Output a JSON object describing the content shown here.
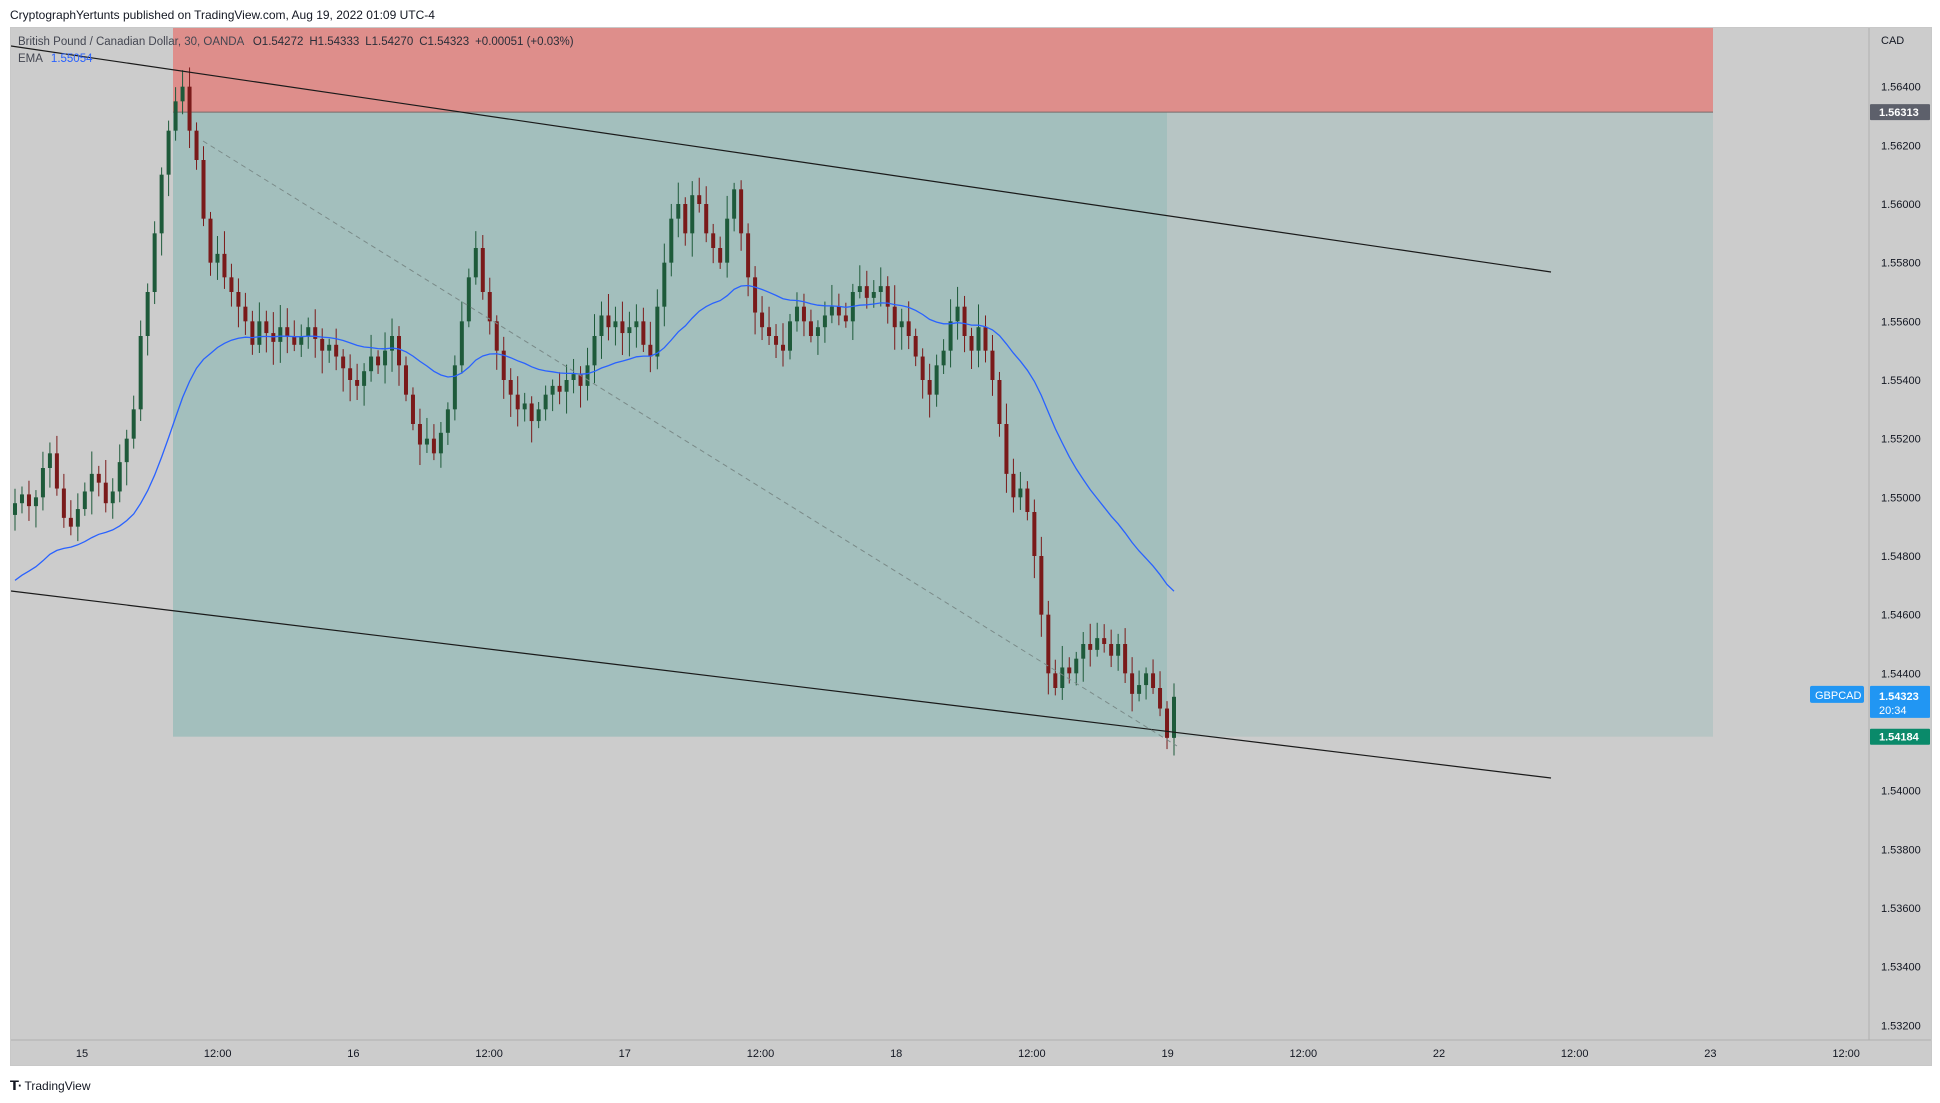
{
  "banner": "CryptographYertunts published on TradingView.com, Aug 19, 2022 01:09 UTC-4",
  "legend": {
    "symbol_desc": "British Pound / Canadian Dollar, 30, OANDA",
    "open": "O1.54272",
    "high": "H1.54333",
    "low": "L1.54270",
    "close": "C1.54323",
    "change": "+0.00051 (+0.03%)",
    "ema_label": "EMA",
    "ema_value": "1.55054"
  },
  "price_axis": {
    "currency": "CAD",
    "ticks": [
      "1.56400",
      "1.56200",
      "1.56000",
      "1.55800",
      "1.55600",
      "1.55400",
      "1.55200",
      "1.55000",
      "1.54800",
      "1.54600",
      "1.54400",
      "1.54000",
      "1.53800",
      "1.53600",
      "1.53400",
      "1.53200"
    ],
    "tick_values": [
      1.564,
      1.562,
      1.56,
      1.558,
      1.556,
      1.554,
      1.552,
      1.55,
      1.548,
      1.546,
      1.544,
      1.54,
      1.538,
      1.536,
      1.534,
      1.532
    ],
    "stop_label": "1.56313",
    "stop_value": 1.56313,
    "symbol_tag": "GBPCAD",
    "last_price": "1.54323",
    "last_value": 1.54323,
    "countdown": "20:34",
    "target_label": "1.54184",
    "target_value": 1.54184
  },
  "time_axis": {
    "labels": [
      "15",
      "12:00",
      "16",
      "12:00",
      "17",
      "12:00",
      "18",
      "12:00",
      "19",
      "12:00",
      "22",
      "12:00",
      "23",
      "12:00"
    ]
  },
  "colors": {
    "background": "#cccccc",
    "risk_zone": "#de8e8b",
    "reward_zone": "#a3bfbd",
    "reward_zone_ext": "#b7c5c4",
    "bull_candle": "#1e5a3a",
    "bear_candle": "#7a1a1a",
    "ema": "#2962ff",
    "channel": "#1a1a1a",
    "target_badge": "#0a8a6a",
    "last_badge": "#2196f3",
    "stop_badge": "#5d606b"
  },
  "chart_data": {
    "type": "candlestick",
    "title": "British Pound / Canadian Dollar, 30, OANDA",
    "ylim": [
      1.5315,
      1.566
    ],
    "indicator": "EMA",
    "ema_value": 1.55054,
    "position": {
      "type": "short",
      "stop": 1.56313,
      "target": 1.54184
    },
    "series": [
      {
        "name": "GBPCAD",
        "close": [
          1.5498,
          1.5501,
          1.5497,
          1.55,
          1.551,
          1.5515,
          1.5503,
          1.5493,
          1.549,
          1.5496,
          1.5502,
          1.5508,
          1.5505,
          1.5498,
          1.5502,
          1.5512,
          1.552,
          1.553,
          1.5555,
          1.557,
          1.559,
          1.561,
          1.5625,
          1.5635,
          1.564,
          1.5625,
          1.5615,
          1.5595,
          1.558,
          1.5583,
          1.5575,
          1.557,
          1.5565,
          1.556,
          1.5552,
          1.556,
          1.5556,
          1.5553,
          1.5558,
          1.5555,
          1.5552,
          1.5555,
          1.5558,
          1.5554,
          1.555,
          1.5552,
          1.5548,
          1.5544,
          1.554,
          1.5538,
          1.5543,
          1.5548,
          1.5545,
          1.555,
          1.5555,
          1.5545,
          1.5535,
          1.5525,
          1.5518,
          1.552,
          1.5515,
          1.5522,
          1.553,
          1.5545,
          1.556,
          1.5575,
          1.5585,
          1.557,
          1.556,
          1.555,
          1.554,
          1.5535,
          1.553,
          1.5532,
          1.5526,
          1.553,
          1.5535,
          1.5538,
          1.5536,
          1.554,
          1.5542,
          1.5538,
          1.5545,
          1.5555,
          1.5562,
          1.5558,
          1.556,
          1.5556,
          1.5558,
          1.556,
          1.5552,
          1.5548,
          1.5565,
          1.558,
          1.5595,
          1.56,
          1.559,
          1.5603,
          1.56,
          1.559,
          1.5585,
          1.558,
          1.5595,
          1.5605,
          1.559,
          1.5575,
          1.5563,
          1.5558,
          1.5555,
          1.5552,
          1.555,
          1.556,
          1.5565,
          1.556,
          1.5555,
          1.5558,
          1.5562,
          1.5565,
          1.5562,
          1.556,
          1.557,
          1.5572,
          1.5568,
          1.557,
          1.5572,
          1.5565,
          1.5558,
          1.556,
          1.5555,
          1.5548,
          1.554,
          1.5535,
          1.5545,
          1.555,
          1.556,
          1.5565,
          1.5555,
          1.555,
          1.5558,
          1.555,
          1.554,
          1.5525,
          1.5508,
          1.55,
          1.5503,
          1.5495,
          1.548,
          1.546,
          1.544,
          1.5435,
          1.5442,
          1.544,
          1.5445,
          1.545,
          1.5448,
          1.5452,
          1.545,
          1.5446,
          1.545,
          1.544,
          1.5433,
          1.5436,
          1.544,
          1.5435,
          1.5428,
          1.5418,
          1.5432
        ]
      }
    ],
    "x_labels": [
      "15",
      "12:00",
      "16",
      "12:00",
      "17",
      "12:00",
      "18",
      "12:00",
      "19",
      "12:00",
      "22",
      "12:00",
      "23",
      "12:00"
    ]
  }
}
